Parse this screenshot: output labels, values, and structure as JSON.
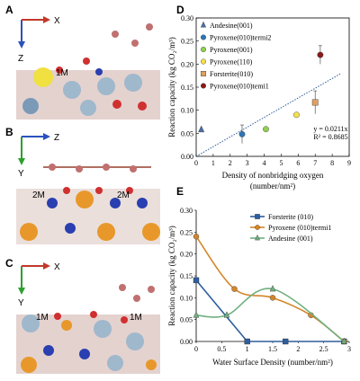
{
  "panels": {
    "A": {
      "letter": "A",
      "axis_h": "X",
      "axis_v": "Z",
      "labels": [
        "1M"
      ]
    },
    "B": {
      "letter": "B",
      "axis_h": "Z",
      "axis_v": "Y",
      "labels": [
        "2M",
        "2M"
      ]
    },
    "C": {
      "letter": "C",
      "axis_h": "X",
      "axis_v": "Y",
      "labels": [
        "1M",
        "1M"
      ]
    },
    "D": {
      "letter": "D"
    },
    "E": {
      "letter": "E"
    }
  },
  "chart_data": [
    {
      "type": "scatter",
      "panel": "D",
      "title": "",
      "xlabel_lines": [
        "Density of nonbridging oxygen",
        "(number/nm²)"
      ],
      "ylabel": "Reaction capacity (kg CO₂/m³)",
      "xlim": [
        0,
        9
      ],
      "ylim": [
        0,
        0.3
      ],
      "xticks": [
        "0",
        "1",
        "2",
        "3",
        "4",
        "5",
        "6",
        "7",
        "8",
        "9"
      ],
      "yticks": [
        "0.00",
        "0.05",
        "0.10",
        "0.15",
        "0.20",
        "0.25",
        "0.30"
      ],
      "legend_position": "top-left",
      "series": [
        {
          "name": "Andesine(001)",
          "marker": "triangle",
          "color": "#4a6fa5",
          "x": 0.3,
          "y": 0.058,
          "err": 0
        },
        {
          "name": "Pyroxene(010)termi2",
          "marker": "circle",
          "color": "#2e75b6",
          "x": 2.7,
          "y": 0.048,
          "err": 0.02
        },
        {
          "name": "Pyroxene(001)",
          "marker": "circle",
          "color": "#92d050",
          "x": 4.1,
          "y": 0.059,
          "err": 0
        },
        {
          "name": "Pyroxene(110)",
          "marker": "circle",
          "color": "#f4e04d",
          "x": 5.9,
          "y": 0.09,
          "err": 0
        },
        {
          "name": "Forsterite(010)",
          "marker": "square",
          "color": "#e0a060",
          "x": 7.0,
          "y": 0.117,
          "err": 0.025
        },
        {
          "name": "Pyroxene(010)temi1",
          "marker": "circle",
          "color": "#8b1a1a",
          "x": 7.3,
          "y": 0.22,
          "err": 0.02
        }
      ],
      "fit": {
        "slope": 0.0211,
        "equation": "y = 0.0211x",
        "r2": "R² = 0.8685",
        "x_range": [
          0,
          8.5
        ]
      }
    },
    {
      "type": "line",
      "panel": "E",
      "title": "",
      "xlabel": "Water Surface Density (number/nm²)",
      "ylabel": "Reaction capacity (kg CO₂/m³)",
      "xlim": [
        0,
        3
      ],
      "ylim": [
        0,
        0.3
      ],
      "xticks": [
        "0",
        "0.5",
        "1",
        "1.5",
        "2",
        "2.5",
        "3"
      ],
      "yticks": [
        "0.00",
        "0.05",
        "0.10",
        "0.15",
        "0.20",
        "0.25",
        "0.30"
      ],
      "legend_position": "top-right",
      "series": [
        {
          "name": "Forsterite (010)",
          "marker": "square",
          "color": "#2e5e9e",
          "x": [
            0,
            1,
            1.75,
            2.9
          ],
          "y": [
            0.14,
            0,
            0,
            0
          ]
        },
        {
          "name": "Pyroxene (010)termi1",
          "marker": "circle",
          "color": "#d4862a",
          "x": [
            0,
            0.75,
            1.5,
            2.25,
            2.9
          ],
          "y": [
            0.24,
            0.12,
            0.1,
            0.06,
            0
          ]
        },
        {
          "name": "Andesine (001)",
          "marker": "triangle",
          "color": "#70b080",
          "x": [
            0,
            0.6,
            1.5,
            2.9
          ],
          "y": [
            0.06,
            0.06,
            0.12,
            0
          ]
        }
      ]
    }
  ]
}
